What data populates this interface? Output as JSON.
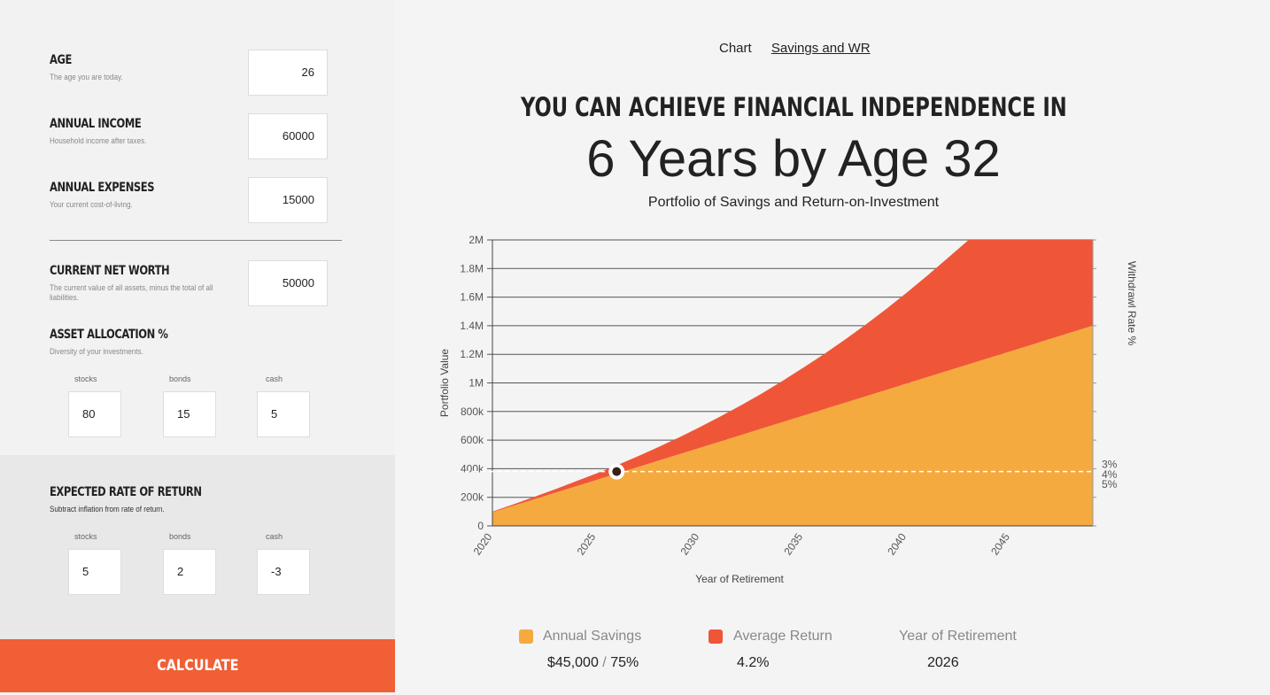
{
  "form": {
    "age": {
      "title": "AGE",
      "desc": "The age you are today.",
      "value": "26"
    },
    "income": {
      "title": "ANNUAL INCOME",
      "desc": "Household income after taxes.",
      "value": "60000"
    },
    "expenses": {
      "title": "ANNUAL EXPENSES",
      "desc": "Your current cost-of-living.",
      "value": "15000"
    },
    "net_worth": {
      "title": "CURRENT NET WORTH",
      "desc": "The current value of all assets, minus the total of all liabilities.",
      "value": "50000"
    },
    "allocation": {
      "title": "ASSET ALLOCATION %",
      "desc": "Diversity of your investments.",
      "labels": [
        "stocks",
        "bonds",
        "cash"
      ],
      "values": [
        "80",
        "15",
        "5"
      ]
    },
    "returns": {
      "title": "EXPECTED RATE OF RETURN",
      "desc": "Subtract inflation from rate of return.",
      "labels": [
        "stocks",
        "bonds",
        "cash"
      ],
      "values": [
        "5",
        "2",
        "-3"
      ]
    },
    "calculate_label": "CALCULATE"
  },
  "tabs": {
    "chart": "Chart",
    "savings_wr": "Savings and WR"
  },
  "result": {
    "headline": "YOU CAN ACHIEVE FINANCIAL INDEPENDENCE IN",
    "big": "6 Years by Age 32"
  },
  "colors": {
    "savings": "#f4aa3f",
    "returns": "#ef5638",
    "accent": "#f05f35"
  },
  "chart_data": {
    "type": "area",
    "title": "Portfolio of Savings and Return-on-Investment",
    "xlabel": "Year of Retirement",
    "ylabel": "Portfolio Value",
    "y2label": "Withdrawl Rate %",
    "x_ticks": [
      "2020",
      "2025",
      "2030",
      "2035",
      "2040",
      "2045"
    ],
    "y_ticks": [
      "0",
      "200k",
      "400k",
      "600k",
      "800k",
      "1M",
      "1.2M",
      "1.4M",
      "1.6M",
      "1.8M",
      "2M"
    ],
    "y2_ticks": [
      "3%",
      "4%",
      "5%"
    ],
    "xlim": [
      2020,
      2049
    ],
    "ylim": [
      0,
      2000000
    ],
    "x": [
      2020,
      2021,
      2022,
      2023,
      2024,
      2025,
      2026,
      2027,
      2028,
      2029,
      2030,
      2031,
      2032,
      2033,
      2034,
      2035,
      2036,
      2037,
      2038,
      2039,
      2040,
      2041,
      2042,
      2043,
      2044,
      2045,
      2046,
      2047,
      2048,
      2049
    ],
    "series": [
      {
        "name": "Annual Savings",
        "values": [
          95000,
          140000,
          185000,
          230000,
          275000,
          320000,
          365000,
          410000,
          455000,
          500000,
          545000,
          590000,
          635000,
          680000,
          725000,
          770000,
          815000,
          860000,
          905000,
          950000,
          995000,
          1040000,
          1085000,
          1130000,
          1175000,
          1220000,
          1265000,
          1310000,
          1355000,
          1400000
        ]
      },
      {
        "name": "Average Return",
        "values": [
          5000,
          10000,
          17000,
          25000,
          35000,
          45000,
          58000,
          75000,
          95000,
          118000,
          145000,
          175000,
          208000,
          245000,
          288000,
          335000,
          385000,
          440000,
          500000,
          565000,
          635000,
          710000,
          790000,
          875000,
          965000,
          1060000,
          1160000,
          1265000,
          1375000,
          1490000
        ]
      }
    ],
    "fi_threshold": 380000,
    "fi_year": 2026
  },
  "legend": {
    "savings_label": "Annual Savings",
    "savings_value": "$45,000",
    "savings_sep": "/",
    "savings_rate": "75%",
    "return_label": "Average Return",
    "return_value": "4.2%",
    "retire_label": "Year of Retirement",
    "retire_value": "2026"
  }
}
